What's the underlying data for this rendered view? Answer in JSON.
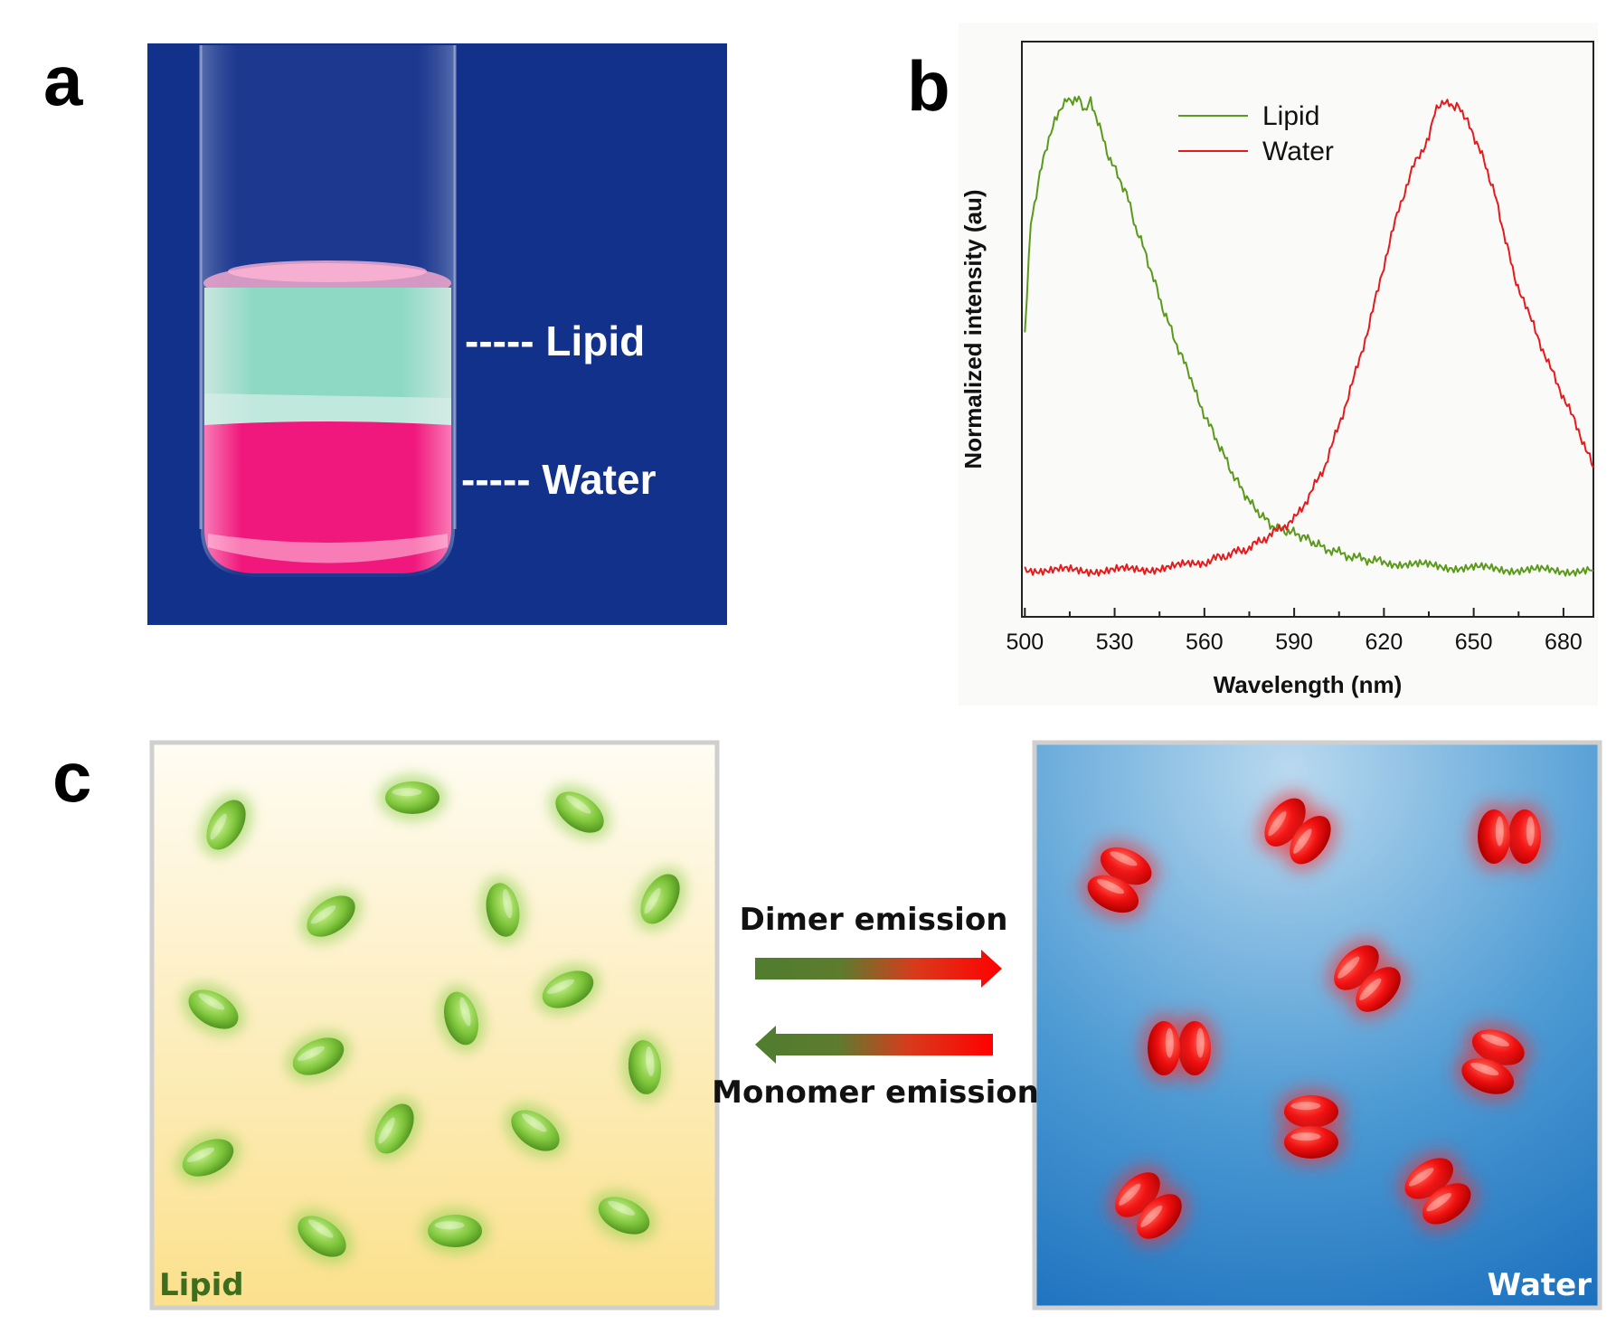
{
  "panels": {
    "a": {
      "label": "a",
      "lipid_label": "----- Lipid",
      "water_label": "----- Water"
    },
    "b": {
      "label": "b"
    },
    "c": {
      "label": "c",
      "left_box_label": "Lipid",
      "right_box_label": "Water",
      "top_arrow_label": "Dimer emission",
      "bottom_arrow_label": "Monomer emission"
    }
  },
  "colors": {
    "photo_background": "#11318A",
    "lipid_layer": "#8FD9C6",
    "water_layer": "#F0167A",
    "lipid_series": "#5A9A1A",
    "water_series": "#E8191C",
    "lipid_box_top": "#FFFBF0",
    "lipid_box_bottom": "#FBE08A",
    "water_box_top": "#B5D6EE",
    "water_box_bottom": "#1F78C2"
  },
  "chart_data": {
    "type": "line",
    "xlabel": "Wavelength (nm)",
    "ylabel": "Normalized intensity (au)",
    "xlim": [
      499,
      690
    ],
    "ylim": [
      0,
      1.05
    ],
    "xticks": [
      500,
      530,
      560,
      590,
      620,
      650,
      680
    ],
    "yticks_shown": false,
    "grid": false,
    "legend_position": "top-center",
    "series": [
      {
        "name": "Lipid",
        "color": "#5A9A1A",
        "x": [
          500,
          502,
          505,
          508,
          510,
          512,
          514,
          516,
          518,
          520,
          522,
          525,
          528,
          531,
          534,
          537,
          540,
          543,
          546,
          549,
          552,
          555,
          558,
          561,
          564,
          567,
          570,
          573,
          576,
          579,
          582,
          585,
          588,
          591,
          594,
          597,
          600,
          605,
          610,
          615,
          620,
          630,
          640,
          650,
          660,
          670,
          680,
          690
        ],
        "y": [
          0.5,
          0.74,
          0.84,
          0.92,
          0.96,
          0.98,
          1.0,
          0.99,
          1.0,
          0.97,
          1.0,
          0.94,
          0.88,
          0.84,
          0.8,
          0.73,
          0.68,
          0.62,
          0.56,
          0.51,
          0.46,
          0.42,
          0.36,
          0.32,
          0.28,
          0.24,
          0.2,
          0.17,
          0.14,
          0.12,
          0.1,
          0.09,
          0.085,
          0.08,
          0.07,
          0.06,
          0.05,
          0.04,
          0.03,
          0.025,
          0.02,
          0.015,
          0.01,
          0.008,
          0.005,
          0.003,
          0.002,
          0.002
        ]
      },
      {
        "name": "Water",
        "color": "#E8191C",
        "x": [
          500,
          510,
          520,
          530,
          540,
          550,
          560,
          565,
          570,
          575,
          580,
          585,
          590,
          595,
          600,
          605,
          610,
          615,
          620,
          625,
          630,
          635,
          637,
          640,
          643,
          645,
          648,
          651,
          654,
          657,
          660,
          663,
          666,
          670,
          675,
          680,
          685,
          690
        ],
        "y": [
          0.005,
          0.003,
          0.002,
          0.003,
          0.005,
          0.01,
          0.02,
          0.03,
          0.04,
          0.05,
          0.07,
          0.09,
          0.11,
          0.16,
          0.22,
          0.31,
          0.41,
          0.52,
          0.65,
          0.77,
          0.86,
          0.92,
          0.97,
          1.0,
          0.98,
          0.99,
          0.95,
          0.91,
          0.86,
          0.8,
          0.72,
          0.64,
          0.58,
          0.52,
          0.44,
          0.37,
          0.3,
          0.22
        ]
      }
    ]
  }
}
